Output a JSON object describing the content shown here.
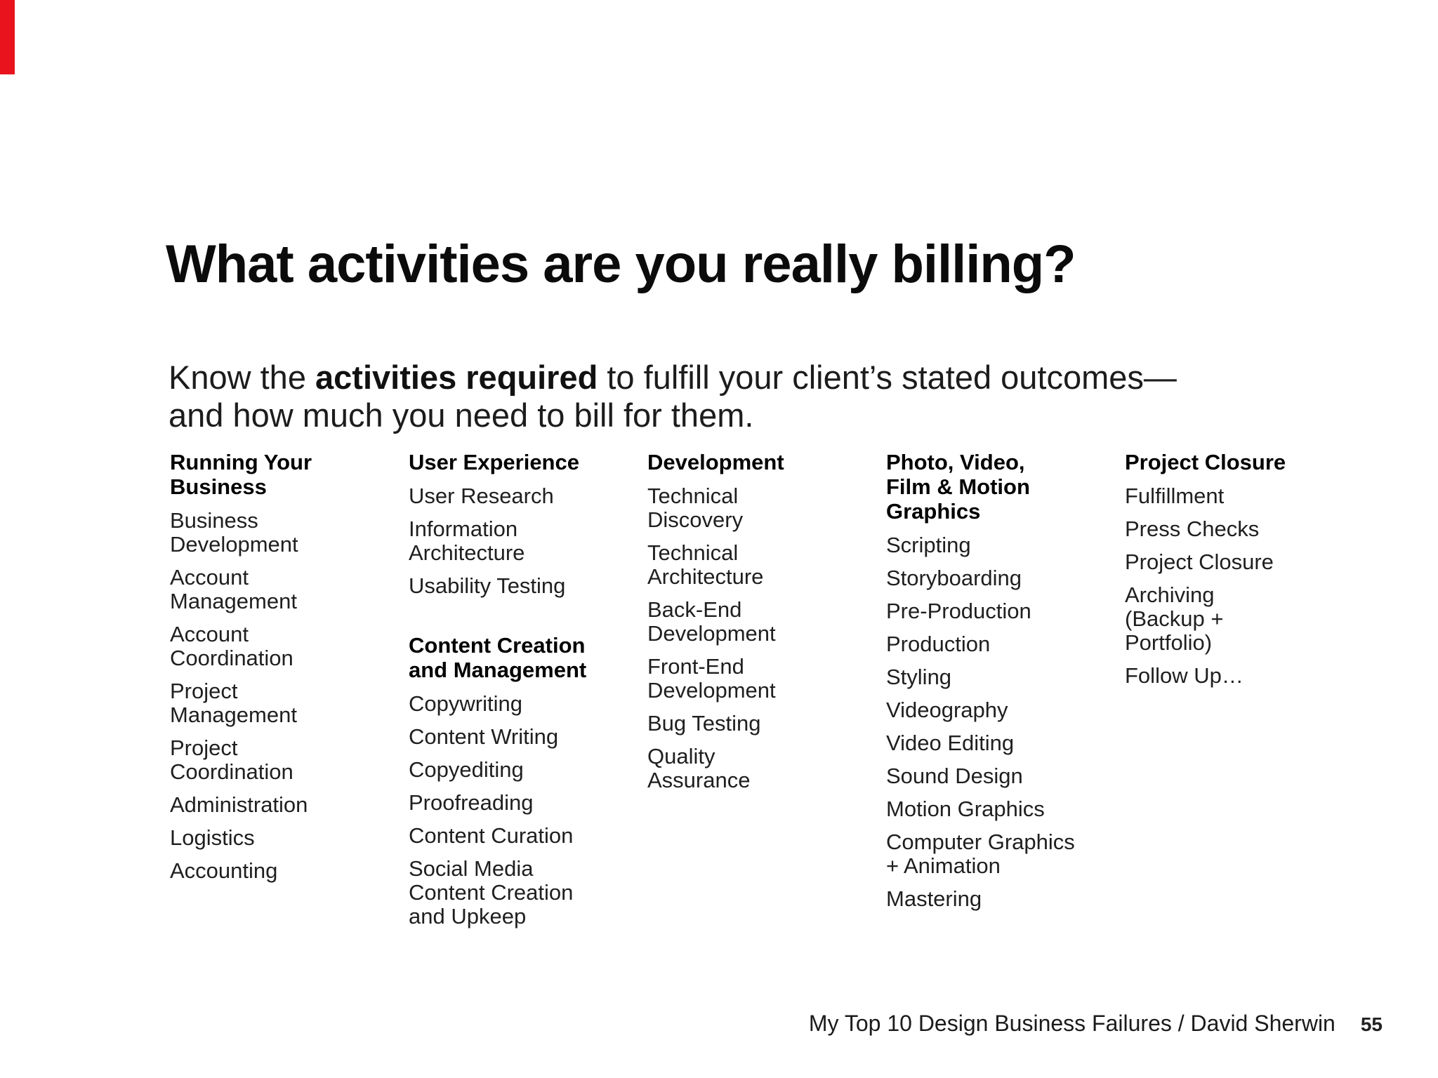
{
  "slide": {
    "title": "What activities are you really billing?",
    "subtitle": {
      "prefix": "Know the ",
      "bold": "activities required",
      "suffix": " to fulfill your client’s stated outcomes—",
      "line2": "and how much you need to bill for them."
    },
    "columns": [
      {
        "sections": [
          {
            "header_lines": [
              "Running Your",
              "Business"
            ],
            "items": [
              {
                "lines": [
                  "Business",
                  "Development"
                ]
              },
              {
                "lines": [
                  "Account",
                  "Management"
                ]
              },
              {
                "lines": [
                  "Account",
                  "Coordination"
                ]
              },
              {
                "lines": [
                  "Project",
                  "Management"
                ]
              },
              {
                "lines": [
                  "Project",
                  "Coordination"
                ]
              },
              {
                "lines": [
                  "Administration"
                ]
              },
              {
                "lines": [
                  "Logistics"
                ]
              },
              {
                "lines": [
                  "Accounting"
                ]
              }
            ]
          }
        ]
      },
      {
        "sections": [
          {
            "header_lines": [
              "User Experience"
            ],
            "items": [
              {
                "lines": [
                  "User Research"
                ]
              },
              {
                "lines": [
                  "Information",
                  "Architecture"
                ]
              },
              {
                "lines": [
                  "Usability Testing"
                ]
              }
            ]
          },
          {
            "header_lines": [
              "Content Creation",
              "and Management"
            ],
            "items": [
              {
                "lines": [
                  "Copywriting"
                ]
              },
              {
                "lines": [
                  "Content Writing"
                ]
              },
              {
                "lines": [
                  "Copyediting"
                ]
              },
              {
                "lines": [
                  "Proofreading"
                ]
              },
              {
                "lines": [
                  "Content Curation"
                ]
              },
              {
                "lines": [
                  "Social Media",
                  "Content Creation",
                  "and Upkeep"
                ]
              }
            ]
          }
        ]
      },
      {
        "sections": [
          {
            "header_lines": [
              "Development"
            ],
            "items": [
              {
                "lines": [
                  "Technical",
                  "Discovery"
                ]
              },
              {
                "lines": [
                  "Technical",
                  "Architecture"
                ]
              },
              {
                "lines": [
                  "Back-End",
                  "Development"
                ]
              },
              {
                "lines": [
                  "Front-End",
                  "Development"
                ]
              },
              {
                "lines": [
                  "Bug Testing"
                ]
              },
              {
                "lines": [
                  "Quality",
                  "Assurance"
                ]
              }
            ]
          }
        ]
      },
      {
        "sections": [
          {
            "header_lines": [
              "Photo, Video,",
              "Film & Motion",
              "Graphics"
            ],
            "items": [
              {
                "lines": [
                  "Scripting"
                ]
              },
              {
                "lines": [
                  "Storyboarding"
                ]
              },
              {
                "lines": [
                  "Pre-Production"
                ]
              },
              {
                "lines": [
                  "Production"
                ]
              },
              {
                "lines": [
                  "Styling"
                ]
              },
              {
                "lines": [
                  "Videography"
                ]
              },
              {
                "lines": [
                  "Video Editing"
                ]
              },
              {
                "lines": [
                  "Sound Design"
                ]
              },
              {
                "lines": [
                  "Motion Graphics"
                ]
              },
              {
                "lines": [
                  "Computer Graphics",
                  "+ Animation"
                ]
              },
              {
                "lines": [
                  "Mastering"
                ]
              }
            ]
          }
        ]
      },
      {
        "sections": [
          {
            "header_lines": [
              "Project Closure"
            ],
            "items": [
              {
                "lines": [
                  "Fulfillment"
                ]
              },
              {
                "lines": [
                  "Press Checks"
                ]
              },
              {
                "lines": [
                  "Project Closure"
                ]
              },
              {
                "lines": [
                  "Archiving",
                  "(Backup +",
                  "Portfolio)"
                ]
              },
              {
                "lines": [
                  "Follow Up…"
                ]
              }
            ]
          }
        ]
      }
    ],
    "footer": {
      "credit": "My Top 10 Design Business Failures / David Sherwin",
      "page_number": "55"
    },
    "colors": {
      "accent_red": "#e8131d",
      "text": "#1c1c1c"
    }
  }
}
